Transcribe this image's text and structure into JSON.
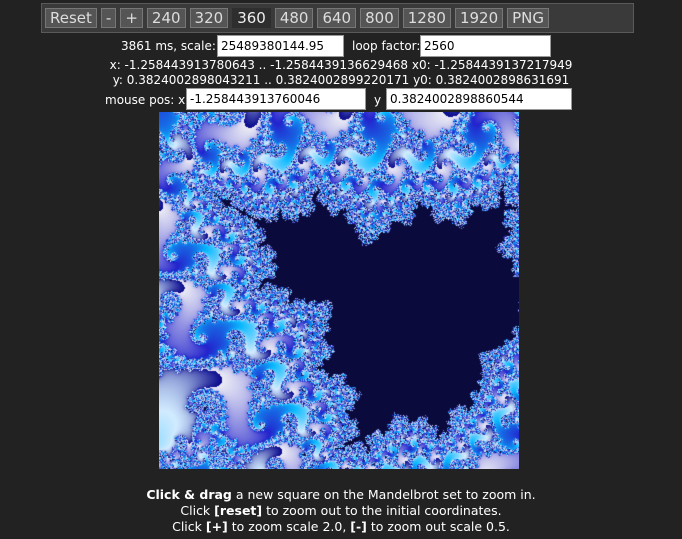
{
  "toolbar": {
    "buttons": [
      {
        "label": "Reset",
        "active": false
      },
      {
        "label": "-",
        "active": false
      },
      {
        "label": "+",
        "active": false
      },
      {
        "label": "240",
        "active": false
      },
      {
        "label": "320",
        "active": false
      },
      {
        "label": "360",
        "active": true
      },
      {
        "label": "480",
        "active": false
      },
      {
        "label": "640",
        "active": false
      },
      {
        "label": "800",
        "active": false
      },
      {
        "label": "1280",
        "active": false
      },
      {
        "label": "1920",
        "active": false
      },
      {
        "label": "PNG",
        "active": false
      }
    ]
  },
  "stats": {
    "time_label": "3861 ms, scale:",
    "scale_value": "25489380144.95",
    "loop_label": "loop factor:",
    "loop_value": "2560",
    "x_range_line": "x: -1.258443913780643 .. -1.2584439136629468 x0: -1.2584439137217949",
    "y_range_line": "y: 0.3824002898043211 .. 0.3824002899220171 y0: 0.3824002898631691"
  },
  "mouse": {
    "label": "mouse pos: x",
    "x_value": "-1.258443913760046",
    "y_label": "y",
    "y_value": "0.3824002898860544"
  },
  "help": {
    "line1_bold": "Click & drag",
    "line1_rest": " a new square on the Mandelbrot set to zoom in.",
    "line2_pre": "Click ",
    "line2_bold": "[reset]",
    "line2_post": " to zoom out to the initial coordinates.",
    "line3_pre": "Click ",
    "line3_bold1": "[+]",
    "line3_mid": " to zoom scale 2.0, ",
    "line3_bold2": "[-]",
    "line3_post": " to zoom out scale 0.5."
  },
  "colors": {
    "background": "#222222",
    "fractal_dark": "#0a0a9a",
    "fractal_cyan": "#19b8ff",
    "fractal_light": "#e8e8f4"
  }
}
